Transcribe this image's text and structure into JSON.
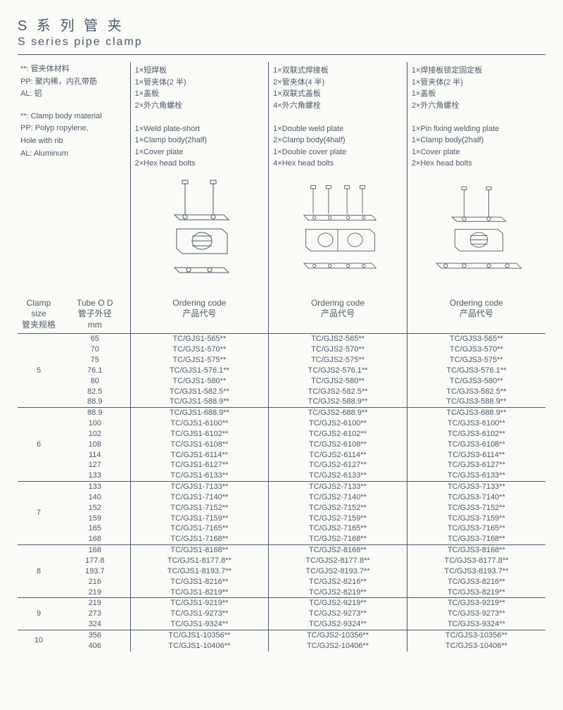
{
  "title": {
    "cn": "S 系 列 管 夹",
    "en": "S series pipe clamp"
  },
  "material": {
    "cn": [
      "**: 管夹体材料",
      "PP: 聚内稀，内孔带筋",
      "AL: 铝"
    ],
    "en": [
      "**: Clamp body material",
      "PP: Polyp ropylene,",
      "  Hole with rib",
      "AL: Aluminum"
    ]
  },
  "columns": [
    {
      "cn": [
        "1×短焊板",
        "1×管夹体(2 半)",
        "1×盖板",
        "2×外六角螺栓"
      ],
      "en": [
        "1×Weld plate-short",
        "1×Clamp body(2half)",
        "1×Cover plate",
        "2×Hex head bolts"
      ]
    },
    {
      "cn": [
        "1×双联式焊接板",
        "2×管夹体(4 半)",
        "1×双联式盖板",
        "4×外六角螺栓"
      ],
      "en": [
        "1×Double weld plate",
        "2×Clamp body(4half)",
        "1×Double cover plate",
        "4×Hex head bolts"
      ]
    },
    {
      "cn": [
        "1×焊接板锁定固定板",
        "1×管夹体(2 半)",
        "1×盖板",
        "2×外六角螺栓"
      ],
      "en": [
        "1×Pin fixing welding plate",
        "1×Clamp body(2half)",
        "1×Cover plate",
        "2×Hex head bolts"
      ]
    }
  ],
  "headers": {
    "size_en": "Clamp size",
    "size_cn": "管夹规格",
    "od_en": "Tube O D",
    "od_cn": "管子外径",
    "od_unit": "mm",
    "code_en": "Ordering code",
    "code_cn": "产品代号"
  },
  "code_prefix": [
    "TC/GJS1-",
    "TC/GJS2-",
    "TC/GJS3-"
  ],
  "code_suffix": "**",
  "groups": [
    {
      "size": "5",
      "rows": [
        {
          "od": "65",
          "c": "565"
        },
        {
          "od": "70",
          "c": "570"
        },
        {
          "od": "75",
          "c": "575"
        },
        {
          "od": "76.1",
          "c": "576.1"
        },
        {
          "od": "80",
          "c": "580"
        },
        {
          "od": "82.5",
          "c": "582.5"
        },
        {
          "od": "88.9",
          "c": "588.9"
        }
      ]
    },
    {
      "size": "6",
      "rows": [
        {
          "od": "88.9",
          "c": "688.9"
        },
        {
          "od": "100",
          "c": "6100"
        },
        {
          "od": "102",
          "c": "6102"
        },
        {
          "od": "108",
          "c": "6108"
        },
        {
          "od": "114",
          "c": "6114"
        },
        {
          "od": "127",
          "c": "6127"
        },
        {
          "od": "133",
          "c": "6133"
        }
      ]
    },
    {
      "size": "7",
      "rows": [
        {
          "od": "133",
          "c": "7133"
        },
        {
          "od": "140",
          "c": "7140"
        },
        {
          "od": "152",
          "c": "7152"
        },
        {
          "od": "159",
          "c": "7159"
        },
        {
          "od": "165",
          "c": "7165"
        },
        {
          "od": "168",
          "c": "7168"
        }
      ]
    },
    {
      "size": "8",
      "rows": [
        {
          "od": "168",
          "c": "8168"
        },
        {
          "od": "177.8",
          "c": "8177.8"
        },
        {
          "od": "193.7",
          "c": "8193.7"
        },
        {
          "od": "216",
          "c": "8216"
        },
        {
          "od": "219",
          "c": "8219"
        }
      ]
    },
    {
      "size": "9",
      "rows": [
        {
          "od": "219",
          "c": "9219"
        },
        {
          "od": "273",
          "c": "9273"
        },
        {
          "od": "324",
          "c": "9324"
        }
      ]
    },
    {
      "size": "10",
      "rows": [
        {
          "od": "356",
          "c": "10356"
        },
        {
          "od": "406",
          "c": "10406"
        }
      ]
    }
  ],
  "colors": {
    "line": "#4a5a6a",
    "bg": "#fafaf7"
  }
}
